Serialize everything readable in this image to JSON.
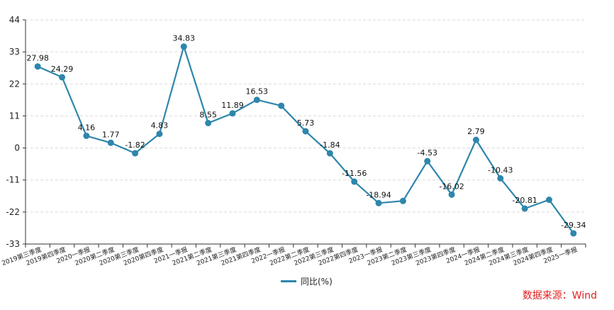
{
  "chart_data": {
    "type": "line",
    "categories": [
      "2019第三季度",
      "2019第四季度",
      "2020一季报",
      "2020第二季度",
      "2020第三季度",
      "2020第四季度",
      "2021一季报",
      "2021第二季度",
      "2021第三季度",
      "2021第四季度",
      "2022一季报",
      "2022第二季度",
      "2022第三季度",
      "2022第四季度",
      "2023一季报",
      "2023第二季度",
      "2023第三季度",
      "2023第四季度",
      "2024一季报",
      "2024第二季度",
      "2024第三季度",
      "2024第四季度",
      "2025一季报"
    ],
    "series": [
      {
        "name": "同比(%)",
        "values": [
          27.98,
          24.29,
          4.16,
          1.77,
          -1.82,
          4.83,
          34.83,
          8.55,
          11.89,
          16.53,
          14.5,
          5.73,
          -1.84,
          -11.56,
          -18.94,
          -18.2,
          -4.53,
          -16.02,
          2.79,
          -10.43,
          -20.81,
          -17.8,
          -29.34
        ],
        "labels": [
          "27.98",
          "24.29",
          "4.16",
          "1.77",
          "-1.82",
          "4.83",
          "34.83",
          "8.55",
          "11.89",
          "16.53",
          "",
          "5.73",
          "-1.84",
          "-11.56",
          "-18.94",
          "",
          "-4.53",
          "-16.02",
          "2.79",
          "-10.43",
          "-20.81",
          "",
          "-29.34"
        ],
        "color": "#2e86ab"
      }
    ],
    "yticks": [
      44,
      33,
      22,
      11,
      0,
      -11,
      -22,
      -33
    ],
    "ylim": [
      -33,
      44
    ],
    "grid": true,
    "legend_position": "bottom-center"
  },
  "legend": {
    "label": "同比(%)"
  },
  "source": {
    "text": "数据来源：Wind"
  }
}
